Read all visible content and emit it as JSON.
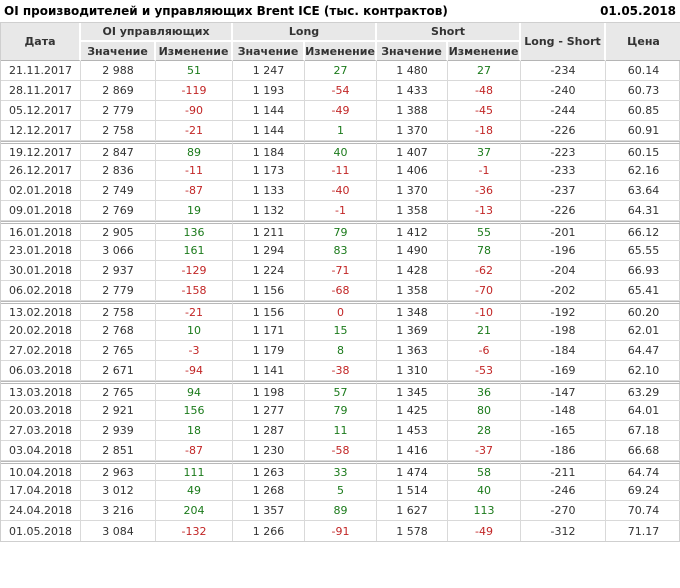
{
  "header": {
    "title": "OI производителей и управляющих Brent ICE (тыс. контрактов)",
    "as_of_date": "01.05.2018"
  },
  "colors": {
    "positive_change": "#1b7a1b",
    "negative_change": "#c22626",
    "text": "#333333",
    "header_background": "#e8e8e8",
    "grid_border": "#d9d9d9"
  },
  "chart_data": {
    "type": "table",
    "title": "OI производителей и управляющих Brent ICE (тыс. контрактов)",
    "as_of_date": "01.05.2018",
    "headers": {
      "date": "Дата",
      "oi_group": "OI управляющих",
      "long_group": "Long",
      "short_group": "Short",
      "value": "Значение",
      "change": "Изменение",
      "long_short": "Long - Short",
      "price": "Цена"
    },
    "columns_flat": [
      "Дата",
      "OI управляющих Значение",
      "OI управляющих Изменение",
      "Long Значение",
      "Long Изменение",
      "Short Значение",
      "Short Изменение",
      "Long - Short",
      "Цена"
    ],
    "rows": [
      [
        "21.11.2017",
        "2 988",
        51,
        "1 247",
        27,
        "1 480",
        27,
        -234,
        "60.14"
      ],
      [
        "28.11.2017",
        "2 869",
        -119,
        "1 193",
        -54,
        "1 433",
        -48,
        -240,
        "60.73"
      ],
      [
        "05.12.2017",
        "2 779",
        -90,
        "1 144",
        -49,
        "1 388",
        -45,
        -244,
        "60.85"
      ],
      [
        "12.12.2017",
        "2 758",
        -21,
        "1 144",
        1,
        "1 370",
        -18,
        -226,
        "60.91"
      ],
      [
        "19.12.2017",
        "2 847",
        89,
        "1 184",
        40,
        "1 407",
        37,
        -223,
        "60.15"
      ],
      [
        "26.12.2017",
        "2 836",
        -11,
        "1 173",
        -11,
        "1 406",
        -1,
        -233,
        "62.16"
      ],
      [
        "02.01.2018",
        "2 749",
        -87,
        "1 133",
        -40,
        "1 370",
        -36,
        -237,
        "63.64"
      ],
      [
        "09.01.2018",
        "2 769",
        19,
        "1 132",
        -1,
        "1 358",
        -13,
        -226,
        "64.31"
      ],
      [
        "16.01.2018",
        "2 905",
        136,
        "1 211",
        79,
        "1 412",
        55,
        -201,
        "66.12"
      ],
      [
        "23.01.2018",
        "3 066",
        161,
        "1 294",
        83,
        "1 490",
        78,
        -196,
        "65.55"
      ],
      [
        "30.01.2018",
        "2 937",
        -129,
        "1 224",
        -71,
        "1 428",
        -62,
        -204,
        "66.93"
      ],
      [
        "06.02.2018",
        "2 779",
        -158,
        "1 156",
        -68,
        "1 358",
        -70,
        -202,
        "65.41"
      ],
      [
        "13.02.2018",
        "2 758",
        -21,
        "1 156",
        0,
        "1 348",
        -10,
        -192,
        "60.20"
      ],
      [
        "20.02.2018",
        "2 768",
        10,
        "1 171",
        15,
        "1 369",
        21,
        -198,
        "62.01"
      ],
      [
        "27.02.2018",
        "2 765",
        -3,
        "1 179",
        8,
        "1 363",
        -6,
        -184,
        "64.47"
      ],
      [
        "06.03.2018",
        "2 671",
        -94,
        "1 141",
        -38,
        "1 310",
        -53,
        -169,
        "62.10"
      ],
      [
        "13.03.2018",
        "2 765",
        94,
        "1 198",
        57,
        "1 345",
        36,
        -147,
        "63.29"
      ],
      [
        "20.03.2018",
        "2 921",
        156,
        "1 277",
        79,
        "1 425",
        80,
        -148,
        "64.01"
      ],
      [
        "27.03.2018",
        "2 939",
        18,
        "1 287",
        11,
        "1 453",
        28,
        -165,
        "67.18"
      ],
      [
        "03.04.2018",
        "2 851",
        -87,
        "1 230",
        -58,
        "1 416",
        -37,
        -186,
        "66.68"
      ],
      [
        "10.04.2018",
        "2 963",
        111,
        "1 263",
        33,
        "1 474",
        58,
        -211,
        "64.74"
      ],
      [
        "17.04.2018",
        "3 012",
        49,
        "1 268",
        5,
        "1 514",
        40,
        -246,
        "69.24"
      ],
      [
        "24.04.2018",
        "3 216",
        204,
        "1 357",
        89,
        "1 627",
        113,
        -270,
        "70.74"
      ],
      [
        "01.05.2018",
        "3 084",
        -132,
        "1 266",
        -91,
        "1 578",
        -49,
        -312,
        "71.17"
      ]
    ]
  }
}
